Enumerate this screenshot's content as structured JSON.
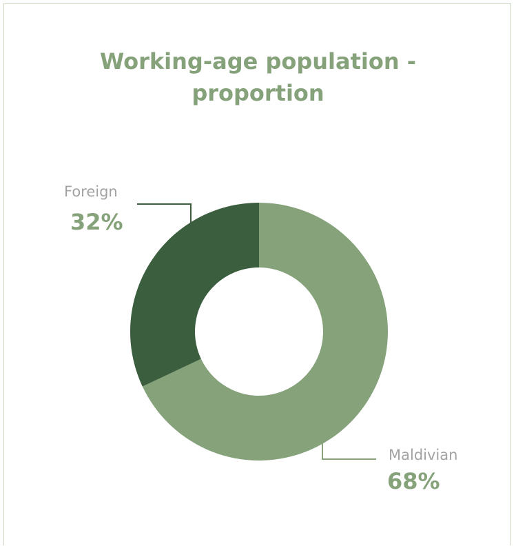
{
  "chart_data": {
    "type": "pie",
    "variant": "donut",
    "title_lines": [
      "Working-age population -",
      "proportion"
    ],
    "slices": [
      {
        "label": "Maldivian",
        "value": 68,
        "display": "68%",
        "color": "#86a27b"
      },
      {
        "label": "Foreign",
        "value": 32,
        "display": "32%",
        "color": "#3b5e3e"
      }
    ],
    "label_color": "#a3a3a3",
    "value_color": "#86a27b",
    "leader_line_color_maldivian": "#86a27b",
    "leader_line_color_foreign": "#3b5e3e",
    "legend": "none"
  }
}
